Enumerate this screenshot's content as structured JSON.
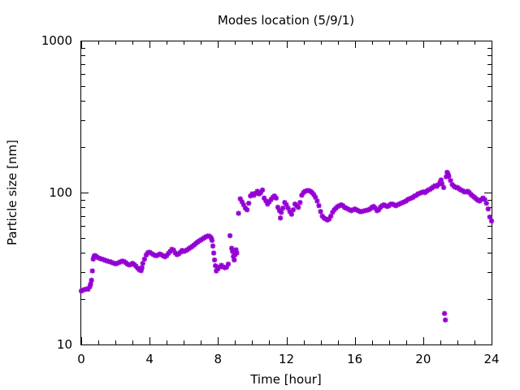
{
  "chart_data": {
    "type": "scatter",
    "title": "Modes location (5/9/1)",
    "xlabel": "Time [hour]",
    "ylabel": "Particle size [nm]",
    "xlim": [
      0,
      24
    ],
    "ylim": [
      10,
      1000
    ],
    "yscale": "log",
    "grid": false,
    "legend": "none",
    "marker_color": "#9400d3",
    "marker": "asterisk",
    "x_tick_labels": [
      "0",
      "4",
      "8",
      "12",
      "16",
      "20",
      "24"
    ],
    "y_tick_labels": [
      "10",
      "100",
      "1000"
    ],
    "series": [
      {
        "points": [
          [
            0.0,
            22.5
          ],
          [
            0.1,
            22.8
          ],
          [
            0.2,
            23.0
          ],
          [
            0.3,
            23.2
          ],
          [
            0.4,
            23.1
          ],
          [
            0.5,
            24.0
          ],
          [
            0.55,
            25.0
          ],
          [
            0.6,
            26.5
          ],
          [
            0.65,
            30.5
          ],
          [
            0.7,
            36.5
          ],
          [
            0.75,
            38.0
          ],
          [
            0.8,
            38.5
          ],
          [
            0.9,
            37.8
          ],
          [
            1.0,
            37.2
          ],
          [
            1.1,
            36.8
          ],
          [
            1.2,
            36.5
          ],
          [
            1.3,
            36.2
          ],
          [
            1.4,
            35.8
          ],
          [
            1.5,
            35.5
          ],
          [
            1.6,
            35.2
          ],
          [
            1.7,
            35.0
          ],
          [
            1.8,
            34.6
          ],
          [
            1.9,
            34.3
          ],
          [
            2.0,
            34.0
          ],
          [
            2.1,
            34.2
          ],
          [
            2.2,
            34.6
          ],
          [
            2.3,
            35.0
          ],
          [
            2.4,
            35.4
          ],
          [
            2.5,
            35.2
          ],
          [
            2.6,
            34.6
          ],
          [
            2.7,
            33.8
          ],
          [
            2.8,
            33.4
          ],
          [
            2.9,
            33.6
          ],
          [
            3.0,
            34.2
          ],
          [
            3.1,
            33.6
          ],
          [
            3.2,
            32.8
          ],
          [
            3.3,
            31.8
          ],
          [
            3.4,
            31.0
          ],
          [
            3.5,
            30.6
          ],
          [
            3.55,
            32.0
          ],
          [
            3.6,
            34.2
          ],
          [
            3.7,
            36.5
          ],
          [
            3.8,
            38.8
          ],
          [
            3.9,
            40.3
          ],
          [
            4.0,
            40.5
          ],
          [
            4.1,
            39.8
          ],
          [
            4.2,
            39.2
          ],
          [
            4.3,
            38.6
          ],
          [
            4.4,
            38.4
          ],
          [
            4.5,
            38.9
          ],
          [
            4.6,
            39.4
          ],
          [
            4.7,
            38.9
          ],
          [
            4.8,
            38.3
          ],
          [
            4.9,
            37.8
          ],
          [
            5.0,
            38.5
          ],
          [
            5.1,
            39.8
          ],
          [
            5.2,
            41.0
          ],
          [
            5.3,
            42.3
          ],
          [
            5.4,
            41.8
          ],
          [
            5.5,
            40.0
          ],
          [
            5.6,
            39.0
          ],
          [
            5.7,
            39.5
          ],
          [
            5.8,
            40.5
          ],
          [
            5.9,
            41.6
          ],
          [
            6.0,
            41.0
          ],
          [
            6.1,
            41.4
          ],
          [
            6.2,
            42.0
          ],
          [
            6.3,
            42.8
          ],
          [
            6.4,
            43.5
          ],
          [
            6.5,
            44.3
          ],
          [
            6.6,
            45.2
          ],
          [
            6.7,
            46.2
          ],
          [
            6.8,
            47.2
          ],
          [
            6.9,
            48.0
          ],
          [
            7.0,
            48.8
          ],
          [
            7.1,
            49.6
          ],
          [
            7.2,
            50.4
          ],
          [
            7.3,
            51.2
          ],
          [
            7.4,
            51.8
          ],
          [
            7.5,
            51.6
          ],
          [
            7.6,
            50.4
          ],
          [
            7.65,
            48.5
          ],
          [
            7.7,
            44.5
          ],
          [
            7.75,
            40.0
          ],
          [
            7.8,
            36.0
          ],
          [
            7.85,
            33.0
          ],
          [
            7.9,
            30.5
          ],
          [
            8.0,
            31.5
          ],
          [
            8.1,
            32.4
          ],
          [
            8.2,
            33.2
          ],
          [
            8.3,
            32.4
          ],
          [
            8.4,
            32.0
          ],
          [
            8.5,
            32.3
          ],
          [
            8.6,
            33.8
          ],
          [
            8.7,
            52.0
          ],
          [
            8.8,
            43.0
          ],
          [
            8.85,
            41.0
          ],
          [
            8.9,
            38.0
          ],
          [
            8.95,
            36.0
          ],
          [
            9.0,
            39.0
          ],
          [
            9.05,
            42.0
          ],
          [
            9.1,
            40.0
          ],
          [
            9.2,
            73.0
          ],
          [
            9.3,
            91.0
          ],
          [
            9.4,
            87.0
          ],
          [
            9.5,
            83.0
          ],
          [
            9.6,
            79.0
          ],
          [
            9.7,
            77.0
          ],
          [
            9.8,
            85.0
          ],
          [
            9.9,
            95.0
          ],
          [
            10.0,
            98.0
          ],
          [
            10.1,
            96.0
          ],
          [
            10.2,
            99.0
          ],
          [
            10.3,
            102.0
          ],
          [
            10.4,
            98.0
          ],
          [
            10.5,
            100.0
          ],
          [
            10.6,
            104.0
          ],
          [
            10.7,
            92.0
          ],
          [
            10.8,
            88.0
          ],
          [
            10.9,
            84.0
          ],
          [
            11.0,
            87.0
          ],
          [
            11.1,
            90.0
          ],
          [
            11.2,
            93.0
          ],
          [
            11.3,
            95.0
          ],
          [
            11.4,
            92.0
          ],
          [
            11.5,
            80.0
          ],
          [
            11.6,
            76.0
          ],
          [
            11.65,
            68.0
          ],
          [
            11.7,
            74.0
          ],
          [
            11.8,
            79.0
          ],
          [
            11.9,
            86.0
          ],
          [
            12.0,
            83.0
          ],
          [
            12.1,
            79.0
          ],
          [
            12.2,
            75.0
          ],
          [
            12.3,
            72.0
          ],
          [
            12.4,
            77.0
          ],
          [
            12.5,
            84.0
          ],
          [
            12.6,
            82.0
          ],
          [
            12.7,
            80.0
          ],
          [
            12.8,
            86.0
          ],
          [
            12.9,
            96.0
          ],
          [
            13.0,
            100.0
          ],
          [
            13.1,
            102.0
          ],
          [
            13.2,
            103.0
          ],
          [
            13.3,
            103.0
          ],
          [
            13.4,
            102.0
          ],
          [
            13.5,
            100.0
          ],
          [
            13.6,
            97.0
          ],
          [
            13.7,
            93.0
          ],
          [
            13.8,
            88.0
          ],
          [
            13.9,
            82.0
          ],
          [
            14.0,
            75.0
          ],
          [
            14.1,
            70.0
          ],
          [
            14.2,
            68.0
          ],
          [
            14.3,
            67.0
          ],
          [
            14.4,
            66.0
          ],
          [
            14.5,
            67.0
          ],
          [
            14.6,
            70.0
          ],
          [
            14.7,
            74.0
          ],
          [
            14.8,
            77.0
          ],
          [
            14.9,
            79.0
          ],
          [
            15.0,
            81.0
          ],
          [
            15.1,
            82.0
          ],
          [
            15.2,
            83.0
          ],
          [
            15.3,
            82.0
          ],
          [
            15.4,
            80.0
          ],
          [
            15.5,
            79.0
          ],
          [
            15.6,
            78.0
          ],
          [
            15.7,
            77.0
          ],
          [
            15.8,
            76.0
          ],
          [
            15.9,
            77.0
          ],
          [
            16.0,
            78.0
          ],
          [
            16.1,
            77.0
          ],
          [
            16.2,
            76.0
          ],
          [
            16.3,
            75.0
          ],
          [
            16.4,
            75.0
          ],
          [
            16.5,
            75.5
          ],
          [
            16.6,
            76.0
          ],
          [
            16.7,
            76.5
          ],
          [
            16.8,
            77.0
          ],
          [
            16.9,
            78.0
          ],
          [
            17.0,
            80.0
          ],
          [
            17.1,
            81.0
          ],
          [
            17.2,
            79.0
          ],
          [
            17.3,
            76.0
          ],
          [
            17.4,
            77.0
          ],
          [
            17.5,
            80.0
          ],
          [
            17.6,
            82.0
          ],
          [
            17.7,
            83.0
          ],
          [
            17.8,
            82.0
          ],
          [
            17.9,
            81.0
          ],
          [
            18.0,
            82.0
          ],
          [
            18.1,
            84.0
          ],
          [
            18.2,
            84.0
          ],
          [
            18.3,
            83.0
          ],
          [
            18.4,
            82.0
          ],
          [
            18.5,
            83.0
          ],
          [
            18.6,
            84.0
          ],
          [
            18.7,
            85.0
          ],
          [
            18.8,
            86.0
          ],
          [
            18.9,
            87.0
          ],
          [
            19.0,
            88.0
          ],
          [
            19.1,
            90.0
          ],
          [
            19.2,
            91.0
          ],
          [
            19.3,
            92.0
          ],
          [
            19.4,
            93.0
          ],
          [
            19.5,
            95.0
          ],
          [
            19.6,
            96.0
          ],
          [
            19.7,
            98.0
          ],
          [
            19.8,
            99.0
          ],
          [
            19.9,
            100.0
          ],
          [
            20.0,
            101.0
          ],
          [
            20.1,
            100.0
          ],
          [
            20.2,
            102.0
          ],
          [
            20.3,
            104.0
          ],
          [
            20.4,
            105.0
          ],
          [
            20.5,
            107.0
          ],
          [
            20.6,
            109.0
          ],
          [
            20.7,
            111.0
          ],
          [
            20.8,
            110.0
          ],
          [
            20.9,
            113.0
          ],
          [
            21.0,
            118.0
          ],
          [
            21.05,
            121.0
          ],
          [
            21.1,
            114.0
          ],
          [
            21.2,
            108.0
          ],
          [
            21.25,
            16.0
          ],
          [
            21.3,
            14.5
          ],
          [
            21.35,
            127.0
          ],
          [
            21.4,
            136.0
          ],
          [
            21.45,
            133.0
          ],
          [
            21.5,
            128.0
          ],
          [
            21.6,
            120.0
          ],
          [
            21.7,
            113.0
          ],
          [
            21.8,
            110.0
          ],
          [
            21.9,
            108.0
          ],
          [
            22.0,
            108.0
          ],
          [
            22.1,
            106.0
          ],
          [
            22.2,
            104.0
          ],
          [
            22.3,
            103.0
          ],
          [
            22.4,
            101.0
          ],
          [
            22.5,
            101.0
          ],
          [
            22.6,
            102.0
          ],
          [
            22.7,
            100.0
          ],
          [
            22.8,
            97.0
          ],
          [
            22.9,
            95.0
          ],
          [
            23.0,
            93.0
          ],
          [
            23.1,
            91.0
          ],
          [
            23.2,
            89.0
          ],
          [
            23.3,
            88.0
          ],
          [
            23.4,
            90.0
          ],
          [
            23.5,
            92.0
          ],
          [
            23.6,
            90.0
          ],
          [
            23.7,
            85.0
          ],
          [
            23.8,
            78.0
          ],
          [
            23.9,
            69.0
          ],
          [
            24.0,
            65.0
          ]
        ]
      }
    ]
  }
}
